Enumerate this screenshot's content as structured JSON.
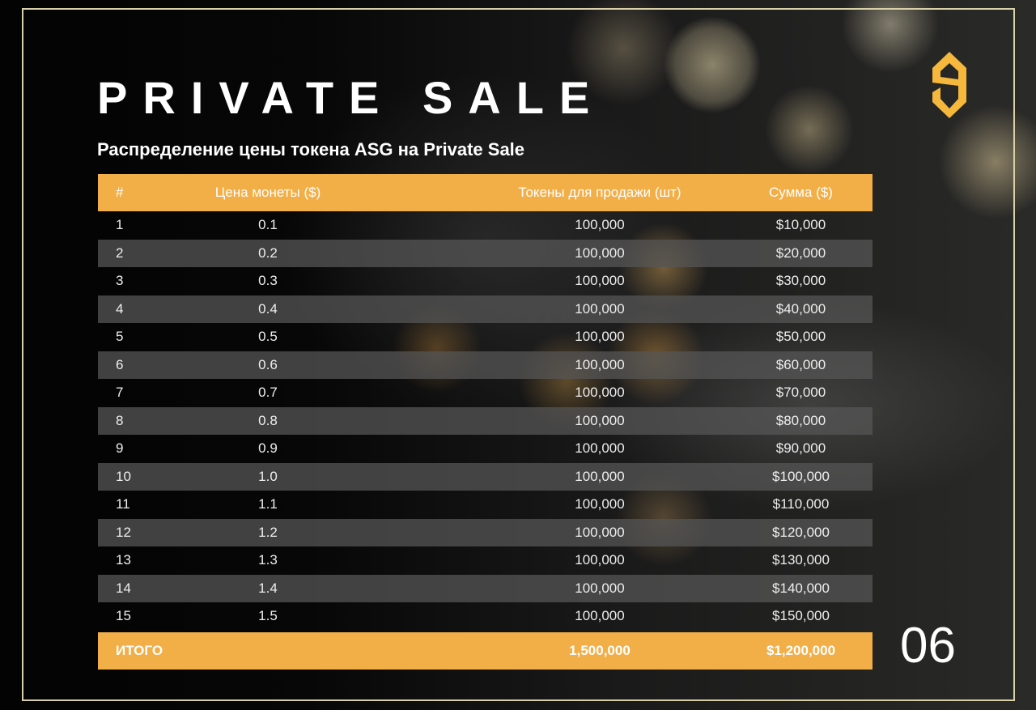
{
  "title": "PRIVATE SALE",
  "subtitle": "Распределение цены токена ASG на Private Sale",
  "page_number": "06",
  "colors": {
    "accent": "#f2ae47",
    "logo": "#f5b83c",
    "frame": "#d8cfa8"
  },
  "logo_icon": "asg-hexagon-logo",
  "table": {
    "headers": [
      "#",
      "Цена монеты ($)",
      "Токены для продажи (шт)",
      "Сумма ($)"
    ],
    "rows": [
      [
        "1",
        "0.1",
        "100,000",
        "$10,000"
      ],
      [
        "2",
        "0.2",
        "100,000",
        "$20,000"
      ],
      [
        "3",
        "0.3",
        "100,000",
        "$30,000"
      ],
      [
        "4",
        "0.4",
        "100,000",
        "$40,000"
      ],
      [
        "5",
        "0.5",
        "100,000",
        "$50,000"
      ],
      [
        "6",
        "0.6",
        "100,000",
        "$60,000"
      ],
      [
        "7",
        "0.7",
        "100,000",
        "$70,000"
      ],
      [
        "8",
        "0.8",
        "100,000",
        "$80,000"
      ],
      [
        "9",
        "0.9",
        "100,000",
        "$90,000"
      ],
      [
        "10",
        "1.0",
        "100,000",
        "$100,000"
      ],
      [
        "11",
        "1.1",
        "100,000",
        "$110,000"
      ],
      [
        "12",
        "1.2",
        "100,000",
        "$120,000"
      ],
      [
        "13",
        "1.3",
        "100,000",
        "$130,000"
      ],
      [
        "14",
        "1.4",
        "100,000",
        "$140,000"
      ],
      [
        "15",
        "1.5",
        "100,000",
        "$150,000"
      ]
    ],
    "total": {
      "label": "ИТОГО",
      "tokens": "1,500,000",
      "sum": "$1,200,000"
    }
  }
}
